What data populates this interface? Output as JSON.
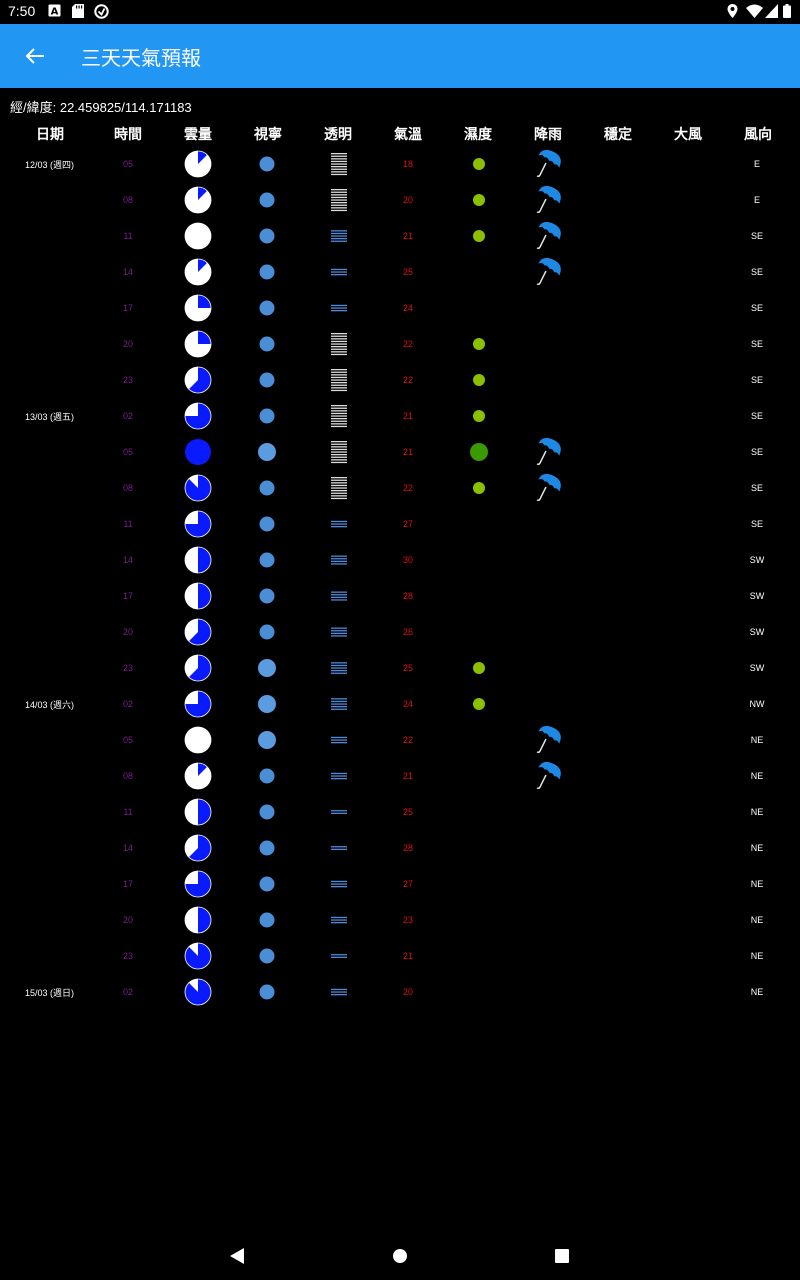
{
  "status_bar": {
    "time": "7:50"
  },
  "app_bar": {
    "title": "三天天氣預報"
  },
  "coords": "經/緯度: 22.459825/114.171183",
  "headers": [
    "日期",
    "時間",
    "雲量",
    "視寧",
    "透明",
    "氣溫",
    "濕度",
    "降雨",
    "穩定",
    "大風",
    "風向"
  ],
  "colors": {
    "app_bar": "#2196f3",
    "cloud_fill": "#0a1aff",
    "seeing_dot": "#4a8fd6",
    "humidity_small": "#8bc000",
    "humidity_large": "#3a9a00",
    "time_text": "#7a1f8a",
    "temp_text": "#e01010"
  },
  "rows": [
    {
      "date": "12/03 (週四)",
      "time": "05",
      "cloud": 0.125,
      "seeing": "small",
      "trans": "grey-6",
      "temp": "18",
      "hum": "small",
      "rain": true,
      "wind": "E"
    },
    {
      "date": "",
      "time": "08",
      "cloud": 0.125,
      "seeing": "small",
      "trans": "grey-5",
      "temp": "20",
      "hum": "small",
      "rain": true,
      "wind": "E"
    },
    {
      "date": "",
      "time": "11",
      "cloud": 0,
      "seeing": "small",
      "trans": "blue-5",
      "temp": "21",
      "hum": "small",
      "rain": true,
      "wind": "SE"
    },
    {
      "date": "",
      "time": "14",
      "cloud": 0.125,
      "seeing": "small",
      "trans": "blue-3",
      "temp": "25",
      "hum": "",
      "rain": true,
      "wind": "SE"
    },
    {
      "date": "",
      "time": "17",
      "cloud": 0.25,
      "seeing": "small",
      "trans": "blue-3",
      "temp": "24",
      "hum": "",
      "rain": false,
      "wind": "SE"
    },
    {
      "date": "",
      "time": "20",
      "cloud": 0.25,
      "seeing": "small",
      "trans": "grey-5",
      "temp": "22",
      "hum": "small",
      "rain": false,
      "wind": "SE"
    },
    {
      "date": "",
      "time": "23",
      "cloud": 0.625,
      "seeing": "small",
      "trans": "grey-6",
      "temp": "22",
      "hum": "small",
      "rain": false,
      "wind": "SE"
    },
    {
      "date": "13/03 (週五)",
      "time": "02",
      "cloud": 0.75,
      "seeing": "small",
      "trans": "grey-6",
      "temp": "21",
      "hum": "small",
      "rain": false,
      "wind": "SE"
    },
    {
      "date": "",
      "time": "05",
      "cloud": 1,
      "seeing": "large",
      "trans": "grey-6",
      "temp": "21",
      "hum": "large",
      "rain": true,
      "wind": "SE"
    },
    {
      "date": "",
      "time": "08",
      "cloud": 0.875,
      "seeing": "small",
      "trans": "grey-6",
      "temp": "22",
      "hum": "small",
      "rain": true,
      "wind": "SE"
    },
    {
      "date": "",
      "time": "11",
      "cloud": 0.75,
      "seeing": "small",
      "trans": "blue-3",
      "temp": "27",
      "hum": "",
      "rain": false,
      "wind": "SE"
    },
    {
      "date": "",
      "time": "14",
      "cloud": 0.5,
      "seeing": "small",
      "trans": "blue-4",
      "temp": "30",
      "hum": "",
      "rain": false,
      "wind": "SW"
    },
    {
      "date": "",
      "time": "17",
      "cloud": 0.5,
      "seeing": "small",
      "trans": "blue-4",
      "temp": "28",
      "hum": "",
      "rain": false,
      "wind": "SW"
    },
    {
      "date": "",
      "time": "20",
      "cloud": 0.625,
      "seeing": "small",
      "trans": "blue-4",
      "temp": "26",
      "hum": "",
      "rain": false,
      "wind": "SW"
    },
    {
      "date": "",
      "time": "23",
      "cloud": 0.625,
      "seeing": "large",
      "trans": "blue-5",
      "temp": "25",
      "hum": "small",
      "rain": false,
      "wind": "SW"
    },
    {
      "date": "14/03 (週六)",
      "time": "02",
      "cloud": 0.75,
      "seeing": "large",
      "trans": "blue-5",
      "temp": "24",
      "hum": "small",
      "rain": false,
      "wind": "NW"
    },
    {
      "date": "",
      "time": "05",
      "cloud": 0,
      "seeing": "large",
      "trans": "blue-3",
      "temp": "22",
      "hum": "",
      "rain": true,
      "wind": "NE"
    },
    {
      "date": "",
      "time": "08",
      "cloud": 0.125,
      "seeing": "small",
      "trans": "blue-3",
      "temp": "21",
      "hum": "",
      "rain": true,
      "wind": "NE"
    },
    {
      "date": "",
      "time": "11",
      "cloud": 0.5,
      "seeing": "small",
      "trans": "blue-2",
      "temp": "25",
      "hum": "",
      "rain": false,
      "wind": "NE"
    },
    {
      "date": "",
      "time": "14",
      "cloud": 0.625,
      "seeing": "small",
      "trans": "blue-2",
      "temp": "28",
      "hum": "",
      "rain": false,
      "wind": "NE"
    },
    {
      "date": "",
      "time": "17",
      "cloud": 0.75,
      "seeing": "small",
      "trans": "blue-3",
      "temp": "27",
      "hum": "",
      "rain": false,
      "wind": "NE"
    },
    {
      "date": "",
      "time": "20",
      "cloud": 0.5,
      "seeing": "small",
      "trans": "blue-3",
      "temp": "23",
      "hum": "",
      "rain": false,
      "wind": "NE"
    },
    {
      "date": "",
      "time": "23",
      "cloud": 0.875,
      "seeing": "small",
      "trans": "blue-2",
      "temp": "21",
      "hum": "",
      "rain": false,
      "wind": "NE"
    },
    {
      "date": "15/03 (週日)",
      "time": "02",
      "cloud": 0.875,
      "seeing": "small",
      "trans": "blue-3",
      "temp": "20",
      "hum": "",
      "rain": false,
      "wind": "NE"
    }
  ]
}
